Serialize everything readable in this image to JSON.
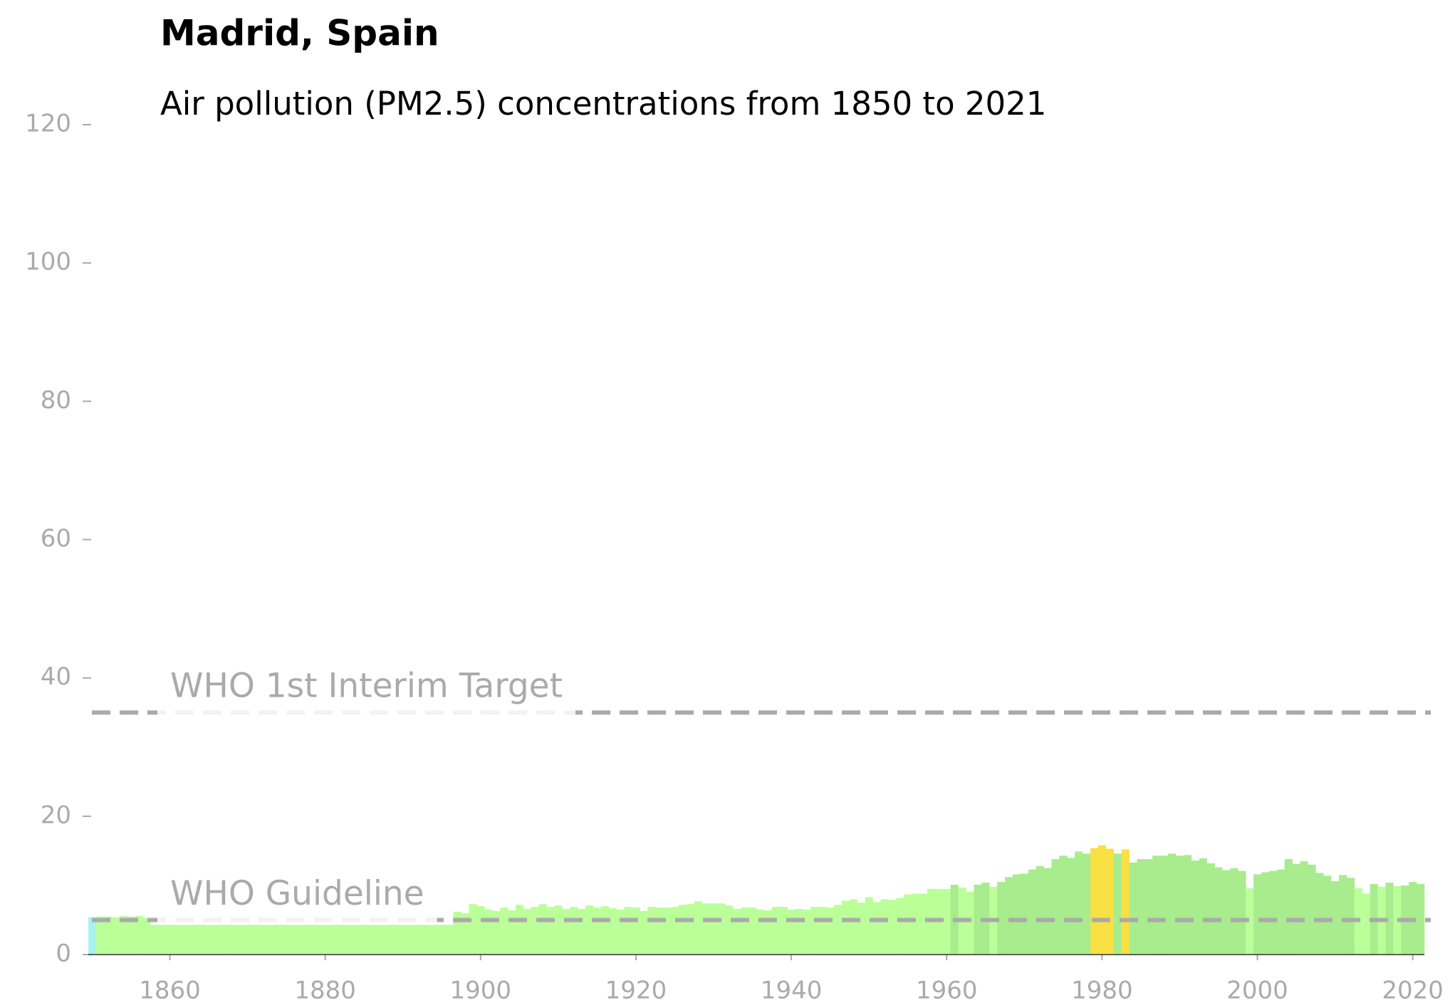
{
  "chart_data": {
    "type": "bar",
    "title": "Madrid, Spain",
    "subtitle": "Air pollution (PM2.5) concentrations from 1850 to 2021",
    "x": [
      1850,
      1851,
      1852,
      1853,
      1854,
      1855,
      1856,
      1857,
      1858,
      1859,
      1860,
      1861,
      1862,
      1863,
      1864,
      1865,
      1866,
      1867,
      1868,
      1869,
      1870,
      1871,
      1872,
      1873,
      1874,
      1875,
      1876,
      1877,
      1878,
      1879,
      1880,
      1881,
      1882,
      1883,
      1884,
      1885,
      1886,
      1887,
      1888,
      1889,
      1890,
      1891,
      1892,
      1893,
      1894,
      1895,
      1896,
      1897,
      1898,
      1899,
      1900,
      1901,
      1902,
      1903,
      1904,
      1905,
      1906,
      1907,
      1908,
      1909,
      1910,
      1911,
      1912,
      1913,
      1914,
      1915,
      1916,
      1917,
      1918,
      1919,
      1920,
      1921,
      1922,
      1923,
      1924,
      1925,
      1926,
      1927,
      1928,
      1929,
      1930,
      1931,
      1932,
      1933,
      1934,
      1935,
      1936,
      1937,
      1938,
      1939,
      1940,
      1941,
      1942,
      1943,
      1944,
      1945,
      1946,
      1947,
      1948,
      1949,
      1950,
      1951,
      1952,
      1953,
      1954,
      1955,
      1956,
      1957,
      1958,
      1959,
      1960,
      1961,
      1962,
      1963,
      1964,
      1965,
      1966,
      1967,
      1968,
      1969,
      1970,
      1971,
      1972,
      1973,
      1974,
      1975,
      1976,
      1977,
      1978,
      1979,
      1980,
      1981,
      1982,
      1983,
      1984,
      1985,
      1986,
      1987,
      1988,
      1989,
      1990,
      1991,
      1992,
      1993,
      1994,
      1995,
      1996,
      1997,
      1998,
      1999,
      2000,
      2001,
      2002,
      2003,
      2004,
      2005,
      2006,
      2007,
      2008,
      2009,
      2010,
      2011,
      2012,
      2013,
      2014,
      2015,
      2016,
      2017,
      2018,
      2019,
      2020,
      2021
    ],
    "values": [
      5.4,
      5.5,
      5.5,
      5.4,
      5.6,
      5.5,
      5.6,
      5.3,
      4.3,
      4.3,
      4.3,
      4.3,
      4.3,
      4.3,
      4.3,
      4.3,
      4.3,
      4.3,
      4.3,
      4.3,
      4.3,
      4.3,
      4.3,
      4.3,
      4.3,
      4.3,
      4.3,
      4.3,
      4.3,
      4.3,
      4.3,
      4.3,
      4.3,
      4.3,
      4.3,
      4.3,
      4.3,
      4.3,
      4.3,
      4.3,
      4.3,
      4.3,
      4.3,
      4.3,
      4.3,
      4.3,
      4.3,
      6.2,
      6.0,
      7.3,
      7.0,
      6.5,
      6.3,
      6.8,
      6.4,
      7.2,
      6.6,
      6.9,
      7.3,
      6.9,
      7.1,
      6.6,
      6.9,
      6.6,
      7.1,
      6.8,
      7.0,
      6.7,
      6.5,
      6.9,
      6.8,
      6.3,
      6.9,
      6.8,
      6.8,
      6.9,
      7.2,
      7.3,
      7.7,
      7.4,
      7.4,
      7.4,
      7.1,
      6.6,
      6.8,
      6.8,
      6.5,
      6.4,
      6.9,
      6.9,
      6.5,
      6.6,
      6.5,
      6.9,
      6.9,
      6.8,
      7.2,
      7.8,
      8.0,
      7.5,
      8.3,
      7.6,
      8.0,
      7.9,
      8.2,
      8.7,
      8.8,
      8.8,
      9.5,
      9.5,
      9.5,
      10.1,
      9.7,
      9.1,
      10.1,
      10.4,
      9.8,
      10.5,
      11.2,
      11.6,
      11.7,
      12.3,
      12.8,
      12.5,
      13.8,
      14.3,
      14.0,
      14.9,
      14.6,
      15.4,
      15.8,
      15.3,
      14.6,
      15.2,
      13.3,
      13.8,
      13.8,
      14.3,
      14.3,
      14.6,
      14.3,
      14.4,
      13.6,
      13.9,
      13.2,
      12.6,
      12.2,
      12.5,
      12.1,
      9.6,
      11.6,
      11.9,
      12.1,
      12.3,
      13.8,
      13.1,
      13.5,
      13.0,
      11.8,
      11.4,
      10.6,
      11.5,
      11.1,
      9.6,
      8.8,
      10.2,
      9.8,
      10.4,
      9.9,
      10.0,
      10.5,
      10.2
    ],
    "colors": [
      "#a8f3ef",
      "#bbff99",
      "#bbff99",
      "#bbff99",
      "#bbff99",
      "#bbff99",
      "#bbff99",
      "#bbff99",
      "#bbff99",
      "#bbff99",
      "#bbff99",
      "#bbff99",
      "#bbff99",
      "#bbff99",
      "#bbff99",
      "#bbff99",
      "#bbff99",
      "#bbff99",
      "#bbff99",
      "#bbff99",
      "#bbff99",
      "#bbff99",
      "#bbff99",
      "#bbff99",
      "#bbff99",
      "#bbff99",
      "#bbff99",
      "#bbff99",
      "#bbff99",
      "#bbff99",
      "#bbff99",
      "#bbff99",
      "#bbff99",
      "#bbff99",
      "#bbff99",
      "#bbff99",
      "#bbff99",
      "#bbff99",
      "#bbff99",
      "#bbff99",
      "#bbff99",
      "#bbff99",
      "#bbff99",
      "#bbff99",
      "#bbff99",
      "#bbff99",
      "#bbff99",
      "#bbff99",
      "#bbff99",
      "#bbff99",
      "#bbff99",
      "#bbff99",
      "#bbff99",
      "#bbff99",
      "#bbff99",
      "#bbff99",
      "#bbff99",
      "#bbff99",
      "#bbff99",
      "#bbff99",
      "#bbff99",
      "#bbff99",
      "#bbff99",
      "#bbff99",
      "#bbff99",
      "#bbff99",
      "#bbff99",
      "#bbff99",
      "#bbff99",
      "#bbff99",
      "#bbff99",
      "#bbff99",
      "#bbff99",
      "#bbff99",
      "#bbff99",
      "#bbff99",
      "#bbff99",
      "#bbff99",
      "#bbff99",
      "#bbff99",
      "#bbff99",
      "#bbff99",
      "#bbff99",
      "#bbff99",
      "#bbff99",
      "#bbff99",
      "#bbff99",
      "#bbff99",
      "#bbff99",
      "#bbff99",
      "#bbff99",
      "#bbff99",
      "#bbff99",
      "#bbff99",
      "#bbff99",
      "#bbff99",
      "#bbff99",
      "#bbff99",
      "#bbff99",
      "#bbff99",
      "#bbff99",
      "#bbff99",
      "#bbff99",
      "#bbff99",
      "#bbff99",
      "#bbff99",
      "#bbff99",
      "#bbff99",
      "#bbff99",
      "#bbff99",
      "#bbff99",
      "#a8ec8e",
      "#bbff99",
      "#bbff99",
      "#a8ec8e",
      "#a8ec8e",
      "#bbff99",
      "#a8ec8e",
      "#a8ec8e",
      "#a8ec8e",
      "#a8ec8e",
      "#a8ec8e",
      "#a8ec8e",
      "#a8ec8e",
      "#a8ec8e",
      "#a8ec8e",
      "#a8ec8e",
      "#a8ec8e",
      "#a8ec8e",
      "#f9e043",
      "#f9e043",
      "#f9e043",
      "#a8ec8e",
      "#f9e043",
      "#a8ec8e",
      "#a8ec8e",
      "#a8ec8e",
      "#a8ec8e",
      "#a8ec8e",
      "#a8ec8e",
      "#a8ec8e",
      "#a8ec8e",
      "#a8ec8e",
      "#a8ec8e",
      "#a8ec8e",
      "#a8ec8e",
      "#a8ec8e",
      "#a8ec8e",
      "#a8ec8e",
      "#bbff99",
      "#a8ec8e",
      "#a8ec8e",
      "#a8ec8e",
      "#a8ec8e",
      "#a8ec8e",
      "#a8ec8e",
      "#a8ec8e",
      "#a8ec8e",
      "#a8ec8e",
      "#a8ec8e",
      "#a8ec8e",
      "#a8ec8e",
      "#a8ec8e",
      "#bbff99",
      "#bbff99",
      "#a8ec8e",
      "#bbff99",
      "#a8ec8e",
      "#bbff99",
      "#a8ec8e",
      "#a8ec8e",
      "#a8ec8e"
    ],
    "xlim": [
      1849.5,
      2021.5
    ],
    "xticks": [
      1860,
      1880,
      1900,
      1920,
      1940,
      1960,
      1980,
      2000,
      2020
    ],
    "ylim": [
      0,
      120
    ],
    "yticks": [
      0,
      20,
      40,
      60,
      80,
      100,
      120
    ],
    "annotations": [
      {
        "text": "WHO 1st Interim Target",
        "value": 35
      },
      {
        "text": "WHO Guideline",
        "value": 5
      }
    ],
    "annotation_color": "#aaaaaa"
  }
}
